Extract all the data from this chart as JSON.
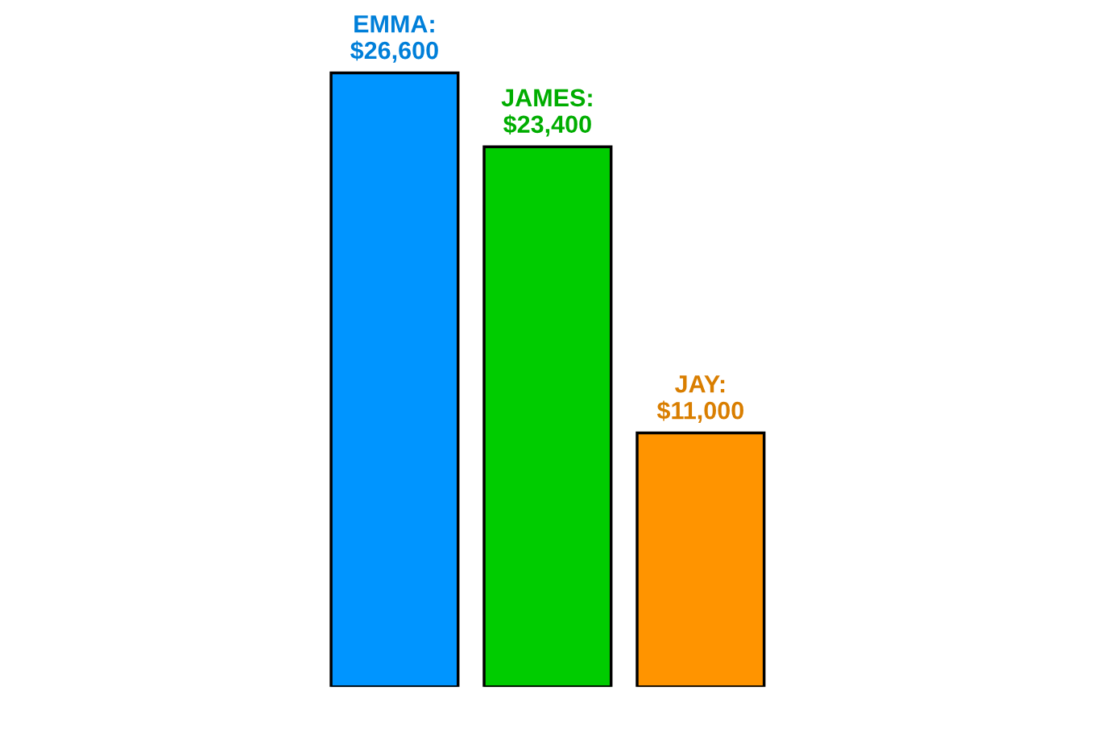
{
  "chart_data": {
    "type": "bar",
    "categories": [
      null,
      null,
      null
    ],
    "values": [
      26600,
      23400,
      11000
    ],
    "colors": [
      "#0095ff",
      "#00cc00",
      "#ff9400"
    ],
    "value_labels": [
      "EMMA:\n$26,600",
      "JAMES:\n$23,400",
      "JAY:\n$11,000"
    ],
    "grid": false,
    "legend": false
  }
}
